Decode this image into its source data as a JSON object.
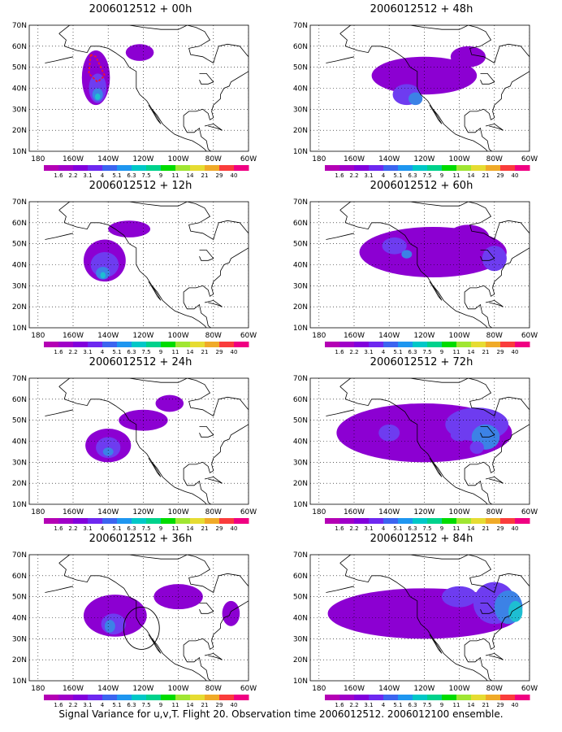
{
  "caption": "Signal Variance for u,v,T. Flight 20. Observation time 2006012512. 2006012100 ensemble.",
  "lat_labels": [
    "70N",
    "60N",
    "50N",
    "40N",
    "30N",
    "20N",
    "10N"
  ],
  "lon_labels": [
    "180",
    "160W",
    "140W",
    "120W",
    "100W",
    "80W",
    "60W"
  ],
  "colorbar": {
    "labels": [
      "1.6",
      "2.2",
      "3.1",
      "4",
      "5.1",
      "6.3",
      "7.5",
      "9",
      "11",
      "14",
      "21",
      "29",
      "40"
    ],
    "colors": [
      "#a000c8",
      "#8200dc",
      "#6e28f0",
      "#3c64f0",
      "#1e96f0",
      "#00c8c8",
      "#00d28c",
      "#00dc00",
      "#a0e632",
      "#e6dc32",
      "#f0aa28",
      "#fa3c3c",
      "#f00082"
    ]
  },
  "fill_colors": {
    "outer": "#8c00d2",
    "mid": "#6e3cf0",
    "inner": "#3c82e6",
    "core": "#1ebed2"
  },
  "panels": [
    {
      "id": "p00",
      "title": "2006012512 + 00h",
      "col": 0,
      "row": 0,
      "track": true
    },
    {
      "id": "p48",
      "title": "2006012512 + 48h",
      "col": 1,
      "row": 0
    },
    {
      "id": "p12",
      "title": "2006012512 + 12h",
      "col": 0,
      "row": 1
    },
    {
      "id": "p60",
      "title": "2006012512 + 60h",
      "col": 1,
      "row": 1
    },
    {
      "id": "p24",
      "title": "2006012512 + 24h",
      "col": 0,
      "row": 2
    },
    {
      "id": "p72",
      "title": "2006012512 + 72h",
      "col": 1,
      "row": 2
    },
    {
      "id": "p36",
      "title": "2006012512 + 36h",
      "col": 0,
      "row": 3,
      "circle": true
    },
    {
      "id": "p84",
      "title": "2006012512 + 84h",
      "col": 1,
      "row": 3
    }
  ]
}
